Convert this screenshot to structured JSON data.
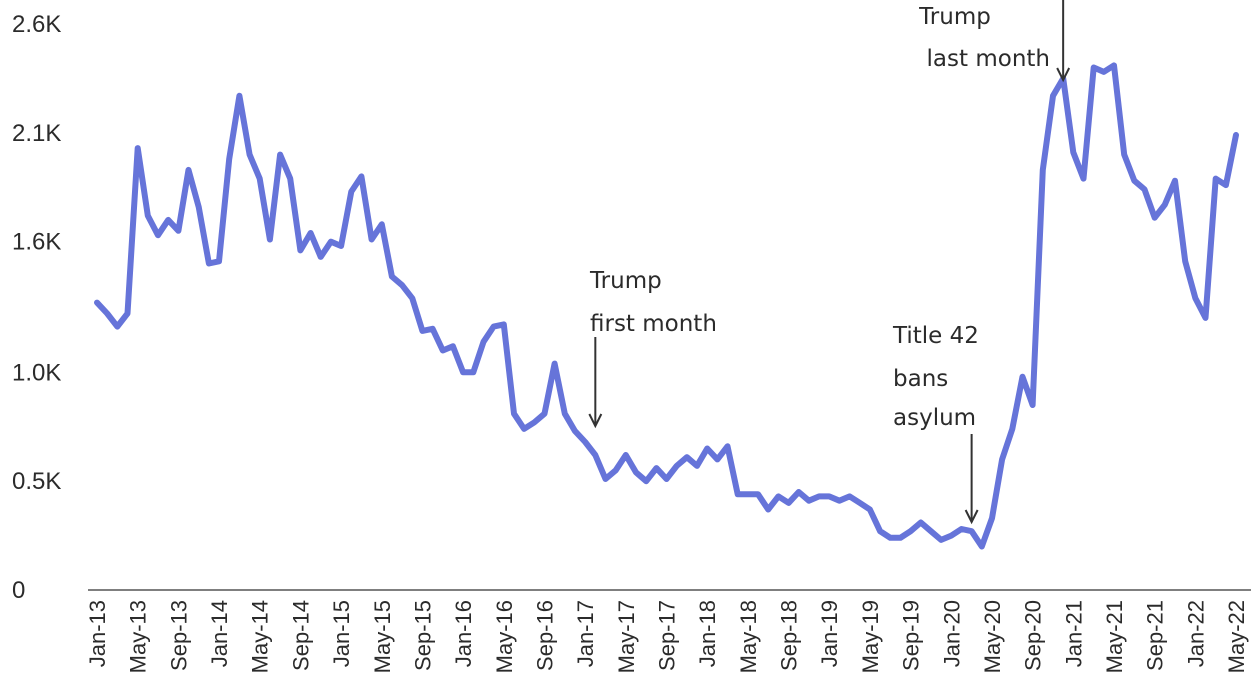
{
  "chart_data": {
    "type": "line",
    "title": "",
    "xlabel": "",
    "ylabel": "",
    "ylim": [
      0,
      2600
    ],
    "grid": false,
    "color": "#6674d9",
    "y_ticks": [
      {
        "value": 0,
        "label": "0"
      },
      {
        "value": 500,
        "label": "0.5K"
      },
      {
        "value": 1000,
        "label": "1.0K"
      },
      {
        "value": 1600,
        "label": "1.6K"
      },
      {
        "value": 2100,
        "label": "2.1K"
      },
      {
        "value": 2600,
        "label": "2.6K"
      }
    ],
    "x_ticks": [
      "Jan-13",
      "May-13",
      "Sep-13",
      "Jan-14",
      "May-14",
      "Sep-14",
      "Jan-15",
      "May-15",
      "Sep-15",
      "Jan-16",
      "May-16",
      "Sep-16",
      "Jan-17",
      "May-17",
      "Sep-17",
      "Jan-18",
      "May-18",
      "Sep-18",
      "Jan-19",
      "May-19",
      "Sep-19",
      "Jan-20",
      "May-20",
      "Sep-20",
      "Jan-21",
      "May-21",
      "Sep-21",
      "Jan-22",
      "May-22"
    ],
    "series": [
      {
        "start": "Jan-13",
        "values": [
          1320,
          1270,
          1210,
          1270,
          2030,
          1720,
          1630,
          1700,
          1650,
          1930,
          1760,
          1500,
          1510,
          1980,
          2270,
          2000,
          1890,
          1610,
          2000,
          1890,
          1560,
          1640,
          1530,
          1600,
          1580,
          1830,
          1900,
          1610,
          1680,
          1440,
          1400,
          1340,
          1190,
          1200,
          1100,
          1120,
          1000,
          1000,
          1140,
          1210,
          1220,
          810,
          740,
          770,
          810,
          1040,
          810,
          730,
          680,
          620,
          510,
          550,
          620,
          540,
          500,
          560,
          510,
          570,
          610,
          570,
          650,
          600,
          660,
          440,
          440,
          440,
          370,
          430,
          400,
          450,
          410,
          430,
          430,
          410,
          430,
          400,
          370,
          270,
          240,
          240,
          270,
          310,
          270,
          230,
          250,
          280,
          270,
          200,
          330,
          600,
          740,
          980,
          850,
          1930,
          2270,
          2350,
          2010,
          1890,
          2400,
          2380,
          2410,
          2000,
          1880,
          1840,
          1710,
          1770,
          1880,
          1510,
          1340,
          1250,
          1890,
          1860,
          2090
        ]
      }
    ],
    "annotations": [
      {
        "lines": [
          "Trump",
          "last month"
        ],
        "x": "Dec-20",
        "y": 2350
      },
      {
        "lines": [
          "Trump",
          "first month"
        ],
        "x": "Feb-17",
        "y": 780
      },
      {
        "lines": [
          "Title 42",
          "bans",
          "asylum"
        ],
        "x": "Mar-20",
        "y": 250
      }
    ]
  }
}
